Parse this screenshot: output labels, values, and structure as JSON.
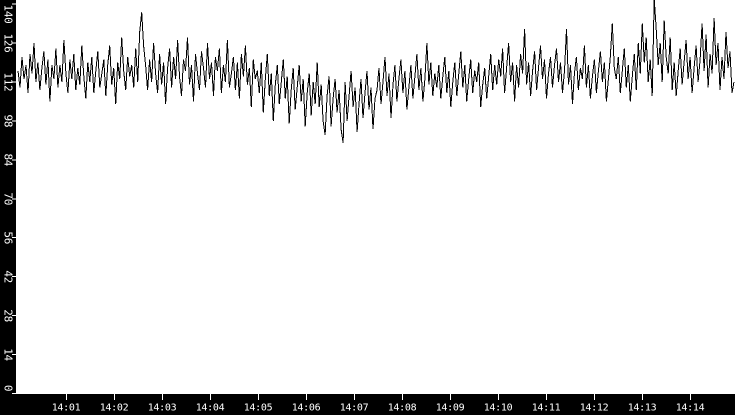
{
  "chart_data": {
    "type": "line",
    "xlabel": "",
    "ylabel": "",
    "x_axis": {
      "start_time": "14:00:00",
      "end_time": "14:14:55",
      "tick_labels": [
        "14:01",
        "14:02",
        "14:03",
        "14:04",
        "14:05",
        "14:06",
        "14:07",
        "14:08",
        "14:09",
        "14:10",
        "14:11",
        "14:12",
        "14:13",
        "14:14"
      ],
      "tick_interval": "1 minute"
    },
    "y_axis": {
      "tick_values": [
        0,
        14,
        28,
        42,
        56,
        70,
        84,
        98,
        112,
        126,
        140
      ],
      "ylim": [
        0,
        140
      ]
    },
    "grid": "off",
    "legend": "none",
    "sample_period_seconds": 2.5,
    "series": [
      {
        "name": "series-1",
        "color": "#000000",
        "values": [
          116,
          110,
          121,
          113,
          118,
          108,
          122,
          115,
          126,
          112,
          119,
          109,
          117,
          123,
          111,
          120,
          105,
          118,
          113,
          124,
          110,
          118,
          112,
          127,
          115,
          108,
          120,
          113,
          122,
          109,
          117,
          111,
          125,
          114,
          106,
          119,
          112,
          121,
          108,
          116,
          123,
          110,
          115,
          120,
          107,
          118,
          125,
          111,
          117,
          104,
          119,
          113,
          128,
          116,
          109,
          121,
          114,
          118,
          110,
          124,
          112,
          130,
          137,
          125,
          118,
          109,
          120,
          112,
          126,
          115,
          108,
          122,
          111,
          119,
          104,
          117,
          124,
          110,
          121,
          113,
          127,
          114,
          107,
          120,
          116,
          128,
          111,
          118,
          105,
          122,
          115,
          109,
          123,
          117,
          110,
          126,
          113,
          119,
          107,
          121,
          116,
          124,
          108,
          118,
          112,
          127,
          110,
          115,
          121,
          109,
          119,
          106,
          122,
          114,
          125,
          111,
          117,
          103,
          120,
          113,
          116,
          108,
          119,
          101,
          113,
          122,
          107,
          115,
          98,
          111,
          118,
          104,
          112,
          120,
          106,
          114,
          97,
          109,
          117,
          102,
          110,
          118,
          105,
          113,
          96,
          108,
          115,
          100,
          112,
          104,
          119,
          103,
          111,
          98,
          93,
          107,
          114,
          96,
          106,
          113,
          101,
          109,
          95,
          90,
          112,
          98,
          107,
          116,
          103,
          110,
          94,
          104,
          113,
          99,
          108,
          116,
          102,
          110,
          95,
          106,
          109,
          117,
          104,
          112,
          121,
          107,
          115,
          99,
          111,
          118,
          105,
          113,
          120,
          108,
          116,
          102,
          110,
          118,
          106,
          114,
          122,
          109,
          117,
          105,
          113,
          126,
          111,
          119,
          107,
          115,
          110,
          118,
          106,
          114,
          121,
          108,
          116,
          103,
          112,
          119,
          107,
          115,
          123,
          110,
          118,
          105,
          113,
          120,
          108,
          116,
          112,
          119,
          103,
          111,
          117,
          106,
          114,
          122,
          109,
          118,
          111,
          120,
          114,
          124,
          108,
          117,
          126,
          112,
          119,
          105,
          118,
          110,
          122,
          115,
          131,
          111,
          119,
          107,
          116,
          123,
          109,
          117,
          125,
          113,
          120,
          106,
          115,
          121,
          110,
          118,
          124,
          112,
          119,
          108,
          116,
          131,
          111,
          118,
          104,
          115,
          121,
          109,
          117,
          113,
          125,
          110,
          118,
          106,
          114,
          120,
          108,
          116,
          123,
          112,
          119,
          105,
          113,
          121,
          133,
          117,
          113,
          121,
          108,
          116,
          124,
          110,
          118,
          105,
          114,
          122,
          109,
          126,
          115,
          133,
          119,
          128,
          112,
          120,
          107,
          142,
          131,
          118,
          126,
          112,
          134,
          121,
          115,
          128,
          109,
          119,
          107,
          116,
          124,
          111,
          119,
          127,
          113,
          121,
          108,
          117,
          125,
          112,
          120,
          133,
          116,
          129,
          110,
          122,
          115,
          135,
          118,
          126,
          109,
          121,
          113,
          130,
          117,
          123,
          108,
          112
        ]
      }
    ]
  },
  "style": {
    "plot_background": "#ffffff",
    "axis_band_color": "#000000",
    "axis_line_color": "#ffffff",
    "tick_color": "#ffffff",
    "axis_text_color": "#ffffff",
    "line_color": "#000000"
  }
}
